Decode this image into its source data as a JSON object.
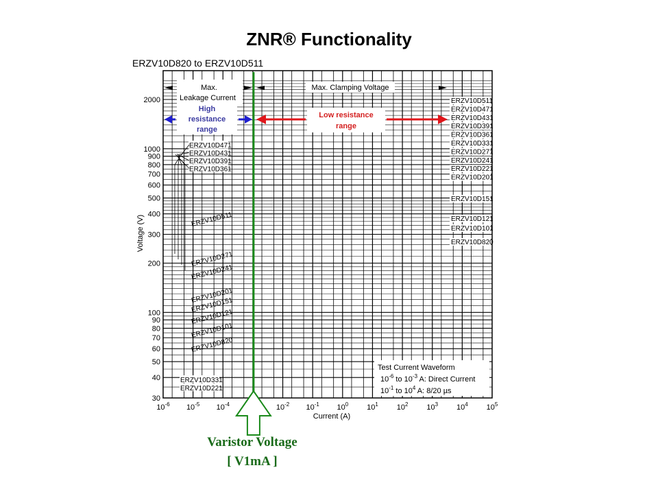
{
  "page": {
    "title": "ZNR® Functionality",
    "subtitle": "ERZV10D820 to ERZV10D511",
    "caption_line1": "Varistor  Voltage",
    "caption_line2": "[ V1mA ]"
  },
  "colors": {
    "green_line": "#1a8a1a",
    "caption": "#1a6b1a",
    "high_res": "#1f1fd0",
    "high_res_text": "#3a3aa0",
    "low_res": "#e0161b",
    "low_res_text": "#d42020",
    "grid": "#000000"
  },
  "annotations": {
    "max_leakage": [
      "Max.",
      "Leakage Current"
    ],
    "max_clamping": "Max. Clamping Voltage",
    "high_resistance": [
      "High",
      "resistance",
      "range"
    ],
    "low_resistance": [
      "Low resistance",
      "range"
    ],
    "test_waveform": {
      "title": "Test Current Waveform",
      "line1_a": "10",
      "line1_a_exp": "-6",
      "line1_b": " to 10",
      "line1_b_exp": "-3",
      "line1_c": " A: Direct Current",
      "line2_a": "10",
      "line2_a_exp": "-1",
      "line2_b": " to 10",
      "line2_b_exp": "4",
      "line2_c": " A:  8/20 µs"
    }
  },
  "chart_data": {
    "type": "line",
    "title": "ERZV10D820 to ERZV10D511",
    "xlabel": "Current (A)",
    "ylabel": "Voltage (V)",
    "xscale": "log",
    "yscale": "log",
    "xlim": [
      1e-06,
      100000.0
    ],
    "ylim": [
      30,
      2600
    ],
    "x_ticks": [
      "10-6",
      "10-5",
      "10-4",
      "10-3",
      "10-2",
      "10-1",
      "100",
      "101",
      "102",
      "103",
      "104",
      "105"
    ],
    "y_ticks": [
      30,
      40,
      50,
      60,
      70,
      80,
      90,
      100,
      200,
      300,
      400,
      500,
      600,
      700,
      800,
      900,
      1000,
      2000
    ],
    "grid": true,
    "reference_line": {
      "x": 0.001,
      "label": "Varistor Voltage [V1mA]"
    },
    "series": [
      {
        "name": "ERZV10D820",
        "v1ma": 82,
        "v_at_1e-6": 46,
        "v_at_1e4": 340
      },
      {
        "name": "ERZV10D101",
        "v1ma": 100,
        "v_at_1e-6": 57,
        "v_at_1e4": 400
      },
      {
        "name": "ERZV10D121",
        "v1ma": 120,
        "v_at_1e-6": 70,
        "v_at_1e4": 470
      },
      {
        "name": "ERZV10D151",
        "v1ma": 150,
        "v_at_1e-6": 88,
        "v_at_1e4": 560
      },
      {
        "name": "ERZV10D201",
        "v1ma": 200,
        "v_at_1e-6": 116,
        "v_at_1e4": 720
      },
      {
        "name": "ERZV10D221",
        "v1ma": 220,
        "v_at_1e-6": 127,
        "v_at_1e4": 790
      },
      {
        "name": "ERZV10D241",
        "v1ma": 240,
        "v_at_1e-6": 140,
        "v_at_1e4": 860
      },
      {
        "name": "ERZV10D271",
        "v1ma": 270,
        "v_at_1e-6": 157,
        "v_at_1e4": 960
      },
      {
        "name": "ERZV10D331",
        "v1ma": 330,
        "v_at_1e-6": 192,
        "v_at_1e4": 1150
      },
      {
        "name": "ERZV10D361",
        "v1ma": 360,
        "v_at_1e-6": 210,
        "v_at_1e4": 1250
      },
      {
        "name": "ERZV10D391",
        "v1ma": 390,
        "v_at_1e-6": 227,
        "v_at_1e4": 1350
      },
      {
        "name": "ERZV10D431",
        "v1ma": 430,
        "v_at_1e-6": 250,
        "v_at_1e4": 1480
      },
      {
        "name": "ERZV10D471",
        "v1ma": 470,
        "v_at_1e-6": 273,
        "v_at_1e4": 1620
      },
      {
        "name": "ERZV10D511",
        "v1ma": 510,
        "v_at_1e-6": 296,
        "v_at_1e4": 1750
      }
    ],
    "right_labels": [
      "ERZV10D511",
      "ERZV10D471",
      "ERZV10D431",
      "ERZV10D391",
      "ERZV10D361",
      "ERZV10D331",
      "ERZV10D271",
      "ERZV10D241",
      "ERZV10D221",
      "ERZV10D201",
      "ERZV10D151",
      "ERZV10D121",
      "ERZV10D101",
      "ERZV10D820"
    ],
    "left_top_labels": [
      "ERZV10D471",
      "ERZV10D431",
      "ERZV10D391",
      "ERZV10D361"
    ],
    "left_bottom_labels": [
      "ERZV10D331",
      "ERZV10D221"
    ],
    "inline_labels": [
      "ERZV10D511",
      "ERZV10D271",
      "ERZV10D241",
      "ERZV10D201",
      "ERZV10D151",
      "ERZV10D121",
      "ERZV10D101",
      "ERZV10D820"
    ]
  }
}
